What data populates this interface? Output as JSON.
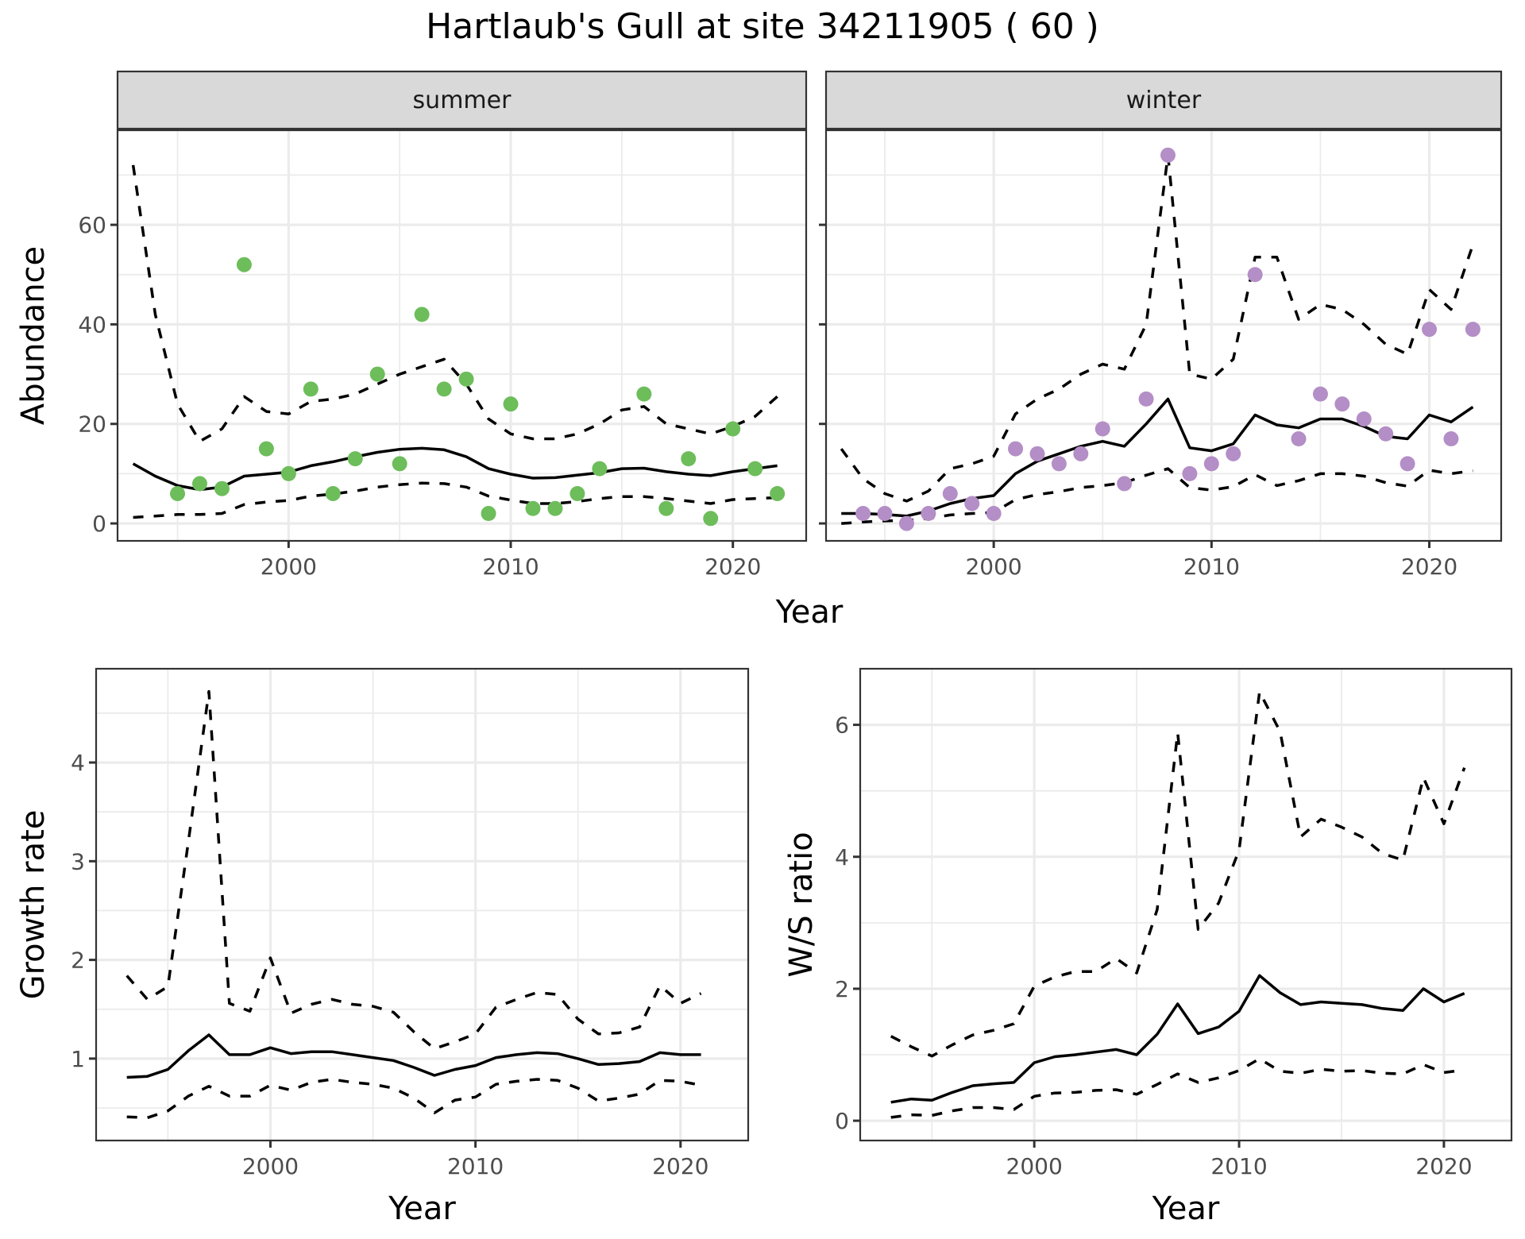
{
  "title": "Hartlaub's Gull at site 34211905 ( 60 )",
  "chart_data": [
    {
      "id": "abundance",
      "type": "scatter",
      "facets": [
        "summer",
        "winter"
      ],
      "xlabel": "Year",
      "ylabel": "Abundance",
      "xlim": [
        1992.3,
        2023.3
      ],
      "ylim": [
        -3.5,
        79
      ],
      "xticks": [
        2000,
        2010,
        2020
      ],
      "yticks": [
        0,
        20,
        40,
        60
      ],
      "grid": true,
      "panels": [
        {
          "facet": "summer",
          "point_color": "#6dbd5b",
          "points": {
            "x": [
              1995,
              1996,
              1997,
              1998,
              1999,
              2000,
              2001,
              2002,
              2003,
              2004,
              2005,
              2006,
              2007,
              2008,
              2009,
              2010,
              2011,
              2012,
              2013,
              2014,
              2016,
              2017,
              2018,
              2019,
              2020,
              2021,
              2022
            ],
            "y": [
              6,
              8,
              7,
              52,
              15,
              10,
              27,
              6,
              13,
              30,
              12,
              42,
              27,
              29,
              2,
              24,
              3,
              3,
              6,
              11,
              26,
              3,
              13,
              1,
              19,
              11,
              6
            ]
          },
          "series": [
            {
              "name": "fit",
              "style": "solid",
              "x": [
                1993,
                1994,
                1995,
                1996,
                1997,
                1998,
                1999,
                2000,
                2001,
                2002,
                2003,
                2004,
                2005,
                2006,
                2007,
                2008,
                2009,
                2010,
                2011,
                2012,
                2013,
                2014,
                2015,
                2016,
                2017,
                2018,
                2019,
                2020,
                2021,
                2022
              ],
              "y": [
                12,
                9.5,
                7.6,
                6.8,
                7.3,
                9.5,
                9.9,
                10.3,
                11.6,
                12.4,
                13.4,
                14.3,
                14.9,
                15.1,
                14.8,
                13.4,
                11,
                9.9,
                9.1,
                9.2,
                9.7,
                10.2,
                11,
                11.1,
                10.4,
                9.9,
                9.6,
                10.4,
                11,
                11.6
              ]
            },
            {
              "name": "upper",
              "style": "dashed",
              "x": [
                1993,
                1994,
                1995,
                1996,
                1997,
                1998,
                1999,
                2000,
                2001,
                2002,
                2003,
                2004,
                2005,
                2006,
                2007,
                2008,
                2009,
                2010,
                2011,
                2012,
                2013,
                2014,
                2015,
                2016,
                2017,
                2018,
                2019,
                2020,
                2021,
                2022
              ],
              "y": [
                72,
                42,
                24,
                16.5,
                19,
                25.5,
                22.5,
                22,
                24.5,
                25,
                26,
                28,
                30,
                31.5,
                33,
                28,
                21,
                18,
                17,
                17,
                18,
                20,
                22.8,
                23.5,
                20,
                19,
                18,
                19.5,
                21.5,
                25.5
              ]
            },
            {
              "name": "lower",
              "style": "dashed",
              "x": [
                1993,
                1994,
                1995,
                1996,
                1997,
                1998,
                1999,
                2000,
                2001,
                2002,
                2003,
                2004,
                2005,
                2006,
                2007,
                2008,
                2009,
                2010,
                2011,
                2012,
                2013,
                2014,
                2015,
                2016,
                2017,
                2018,
                2019,
                2020,
                2021,
                2022
              ],
              "y": [
                1.2,
                1.5,
                1.8,
                1.8,
                2,
                3.8,
                4.3,
                4.6,
                5.5,
                5.9,
                6.5,
                7.3,
                7.8,
                8.1,
                8,
                7.3,
                5.5,
                4.7,
                4,
                4,
                4.4,
                5,
                5.4,
                5.4,
                5,
                4.5,
                4,
                4.8,
                5,
                5.2
              ]
            }
          ]
        },
        {
          "facet": "winter",
          "point_color": "#b48ec6",
          "points": {
            "x": [
              1994,
              1995,
              1996,
              1997,
              1998,
              1999,
              2000,
              2001,
              2002,
              2003,
              2004,
              2005,
              2006,
              2007,
              2008,
              2009,
              2010,
              2011,
              2012,
              2014,
              2015,
              2016,
              2017,
              2018,
              2019,
              2020,
              2021,
              2022
            ],
            "y": [
              2,
              2,
              0,
              2,
              6,
              4,
              2,
              15,
              14,
              12,
              14,
              19,
              8,
              25,
              74,
              10,
              12,
              14,
              50,
              17,
              26,
              24,
              21,
              18,
              12,
              39,
              17,
              39
            ]
          },
          "series": [
            {
              "name": "fit",
              "style": "solid",
              "x": [
                1993,
                1994,
                1995,
                1996,
                1997,
                1998,
                1999,
                2000,
                2001,
                2002,
                2003,
                2004,
                2005,
                2006,
                2007,
                2008,
                2009,
                2010,
                2011,
                2012,
                2013,
                2014,
                2015,
                2016,
                2017,
                2018,
                2019,
                2020,
                2021,
                2022
              ],
              "y": [
                2,
                2,
                1.8,
                1.5,
                2.5,
                4,
                5,
                5.6,
                10,
                12.5,
                14,
                15.5,
                16.5,
                15.5,
                20,
                25,
                15.2,
                14.6,
                16,
                21.8,
                19.8,
                19.2,
                21,
                21,
                19.5,
                17.5,
                17,
                21.8,
                20.4,
                23.4
              ]
            },
            {
              "name": "upper",
              "style": "dashed",
              "x": [
                1993,
                1994,
                1995,
                1996,
                1997,
                1998,
                1999,
                2000,
                2001,
                2002,
                2003,
                2004,
                2005,
                2006,
                2007,
                2008,
                2009,
                2010,
                2011,
                2012,
                2013,
                2014,
                2015,
                2016,
                2017,
                2018,
                2019,
                2020,
                2021,
                2022
              ],
              "y": [
                15,
                9,
                6,
                4.5,
                6.5,
                11,
                12,
                13.5,
                22,
                25,
                27,
                30,
                32,
                31,
                40,
                74,
                30,
                29,
                33,
                53.5,
                53.5,
                41,
                44,
                43,
                40,
                36,
                34,
                47,
                43,
                56
              ]
            },
            {
              "name": "lower",
              "style": "dashed",
              "x": [
                1993,
                1994,
                1995,
                1996,
                1997,
                1998,
                1999,
                2000,
                2001,
                2002,
                2003,
                2004,
                2005,
                2006,
                2007,
                2008,
                2009,
                2010,
                2011,
                2012,
                2013,
                2014,
                2015,
                2016,
                2017,
                2018,
                2019,
                2020,
                2021,
                2022
              ],
              "y": [
                0,
                0.3,
                0.5,
                0.6,
                1,
                1.7,
                2,
                2.2,
                4.8,
                5.8,
                6.4,
                7.2,
                7.6,
                8.2,
                9.7,
                11,
                7.2,
                6.7,
                7.4,
                9.8,
                7.6,
                8.6,
                10,
                10,
                9.5,
                8.2,
                7.5,
                10.7,
                10,
                10.6
              ]
            }
          ]
        }
      ]
    },
    {
      "id": "growth",
      "type": "line",
      "xlabel": "Year",
      "ylabel": "Growth rate",
      "xlim": [
        1991.5,
        2023.3
      ],
      "ylim": [
        0.17,
        4.95
      ],
      "xticks": [
        2000,
        2010,
        2020
      ],
      "yticks": [
        1,
        2,
        3,
        4
      ],
      "grid": true,
      "series": [
        {
          "name": "fit",
          "style": "solid",
          "x": [
            1993,
            1994,
            1995,
            1996,
            1997,
            1998,
            1999,
            2000,
            2001,
            2002,
            2003,
            2004,
            2005,
            2006,
            2007,
            2008,
            2009,
            2010,
            2011,
            2012,
            2013,
            2014,
            2015,
            2016,
            2017,
            2018,
            2019,
            2020,
            2021
          ],
          "y": [
            0.81,
            0.82,
            0.89,
            1.08,
            1.24,
            1.04,
            1.04,
            1.11,
            1.05,
            1.07,
            1.07,
            1.04,
            1.01,
            0.98,
            0.91,
            0.83,
            0.89,
            0.93,
            1.01,
            1.04,
            1.06,
            1.05,
            1,
            0.94,
            0.95,
            0.97,
            1.06,
            1.04,
            1.04
          ]
        },
        {
          "name": "upper",
          "style": "dashed",
          "x": [
            1993,
            1994,
            1995,
            1996,
            1997,
            1998,
            1999,
            2000,
            2001,
            2002,
            2003,
            2004,
            2005,
            2006,
            2007,
            2008,
            2009,
            2010,
            2011,
            2012,
            2013,
            2014,
            2015,
            2016,
            2017,
            2018,
            2019,
            2020,
            2021
          ],
          "y": [
            1.84,
            1.6,
            1.73,
            3.2,
            4.72,
            1.56,
            1.48,
            2.02,
            1.46,
            1.55,
            1.6,
            1.55,
            1.53,
            1.47,
            1.27,
            1.1,
            1.17,
            1.25,
            1.52,
            1.6,
            1.67,
            1.65,
            1.4,
            1.25,
            1.26,
            1.32,
            1.74,
            1.56,
            1.66
          ]
        },
        {
          "name": "lower",
          "style": "dashed",
          "x": [
            1993,
            1994,
            1995,
            1996,
            1997,
            1998,
            1999,
            2000,
            2001,
            2002,
            2003,
            2004,
            2005,
            2006,
            2007,
            2008,
            2009,
            2010,
            2011,
            2012,
            2013,
            2014,
            2015,
            2016,
            2017,
            2018,
            2019,
            2020,
            2021
          ],
          "y": [
            0.41,
            0.4,
            0.47,
            0.62,
            0.72,
            0.62,
            0.62,
            0.73,
            0.68,
            0.76,
            0.79,
            0.76,
            0.74,
            0.7,
            0.6,
            0.45,
            0.58,
            0.61,
            0.74,
            0.77,
            0.79,
            0.78,
            0.7,
            0.57,
            0.6,
            0.64,
            0.78,
            0.77,
            0.73
          ]
        }
      ]
    },
    {
      "id": "ws_ratio",
      "type": "line",
      "xlabel": "Year",
      "ylabel": "W/S ratio",
      "xlim": [
        1991.5,
        2023.3
      ],
      "ylim": [
        -0.3,
        6.85
      ],
      "xticks": [
        2000,
        2010,
        2020
      ],
      "yticks": [
        0,
        2,
        4,
        6
      ],
      "grid": true,
      "series": [
        {
          "name": "fit",
          "style": "solid",
          "x": [
            1993,
            1994,
            1995,
            1996,
            1997,
            1998,
            1999,
            2000,
            2001,
            2002,
            2003,
            2004,
            2005,
            2006,
            2007,
            2008,
            2009,
            2010,
            2011,
            2012,
            2013,
            2014,
            2015,
            2016,
            2017,
            2018,
            2019,
            2020,
            2021
          ],
          "y": [
            0.28,
            0.33,
            0.31,
            0.43,
            0.53,
            0.56,
            0.58,
            0.88,
            0.97,
            1,
            1.04,
            1.08,
            1,
            1.31,
            1.77,
            1.32,
            1.42,
            1.66,
            2.2,
            1.94,
            1.76,
            1.8,
            1.78,
            1.76,
            1.7,
            1.67,
            2,
            1.8,
            1.93
          ]
        },
        {
          "name": "upper",
          "style": "dashed",
          "x": [
            1993,
            1994,
            1995,
            1996,
            1997,
            1998,
            1999,
            2000,
            2001,
            2002,
            2003,
            2004,
            2005,
            2006,
            2007,
            2008,
            2009,
            2010,
            2011,
            2012,
            2013,
            2014,
            2015,
            2016,
            2017,
            2018,
            2019,
            2020,
            2021
          ],
          "y": [
            1.28,
            1.12,
            0.98,
            1.15,
            1.3,
            1.37,
            1.47,
            2.04,
            2.18,
            2.26,
            2.26,
            2.46,
            2.24,
            3.2,
            5.88,
            2.9,
            3.3,
            4.1,
            6.5,
            5.9,
            4.3,
            4.57,
            4.45,
            4.3,
            4.05,
            3.95,
            5.2,
            4.5,
            5.35
          ]
        },
        {
          "name": "lower",
          "style": "dashed",
          "x": [
            1993,
            1994,
            1995,
            1996,
            1997,
            1998,
            1999,
            2000,
            2001,
            2002,
            2003,
            2004,
            2005,
            2006,
            2007,
            2008,
            2009,
            2010,
            2011,
            2012,
            2013,
            2014,
            2015,
            2016,
            2017,
            2018,
            2019,
            2020,
            2021
          ],
          "y": [
            0.05,
            0.09,
            0.08,
            0.15,
            0.2,
            0.2,
            0.17,
            0.37,
            0.42,
            0.43,
            0.46,
            0.47,
            0.4,
            0.55,
            0.71,
            0.58,
            0.65,
            0.76,
            0.94,
            0.75,
            0.72,
            0.78,
            0.75,
            0.76,
            0.72,
            0.71,
            0.85,
            0.73,
            0.77
          ]
        }
      ]
    }
  ]
}
